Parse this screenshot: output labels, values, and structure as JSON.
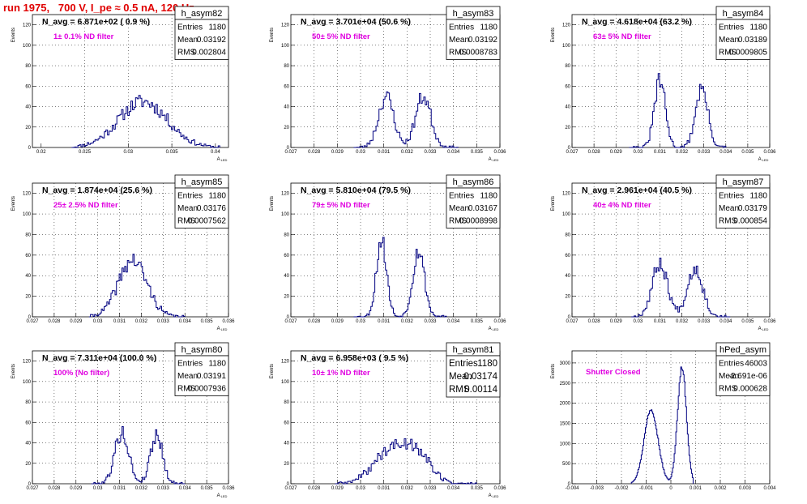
{
  "run_title": "run 1975,   700 V, I_pe ≈ 0.5 nA, 120 Hz",
  "chart_data": [
    {
      "type": "histogram",
      "name": "h_asym82",
      "navg_text": "N_avg = 6.871e+02 ( 0.9 %)",
      "annotation": "1± 0.1% ND filter",
      "stats": {
        "entries": "1180",
        "mean": "0.03192",
        "rms": "0.002804"
      },
      "ylabel": "Events",
      "xlabel": "A_LED",
      "xlim": [
        0.019,
        0.0415
      ],
      "ylim": [
        0,
        130
      ],
      "xticks": [
        0.02,
        0.025,
        0.03,
        0.035,
        0.04
      ],
      "xtick_labels": [
        "0.02",
        "0.025",
        "0.03",
        "0.035",
        "0.04"
      ],
      "yticks": [
        0,
        20,
        40,
        60,
        80,
        100,
        120
      ],
      "peaks": [
        {
          "center": 0.0317,
          "sigma": 0.0028,
          "amp": 45
        }
      ],
      "range": [
        0.0235,
        0.0405
      ],
      "bins": 95,
      "seed": 11
    },
    {
      "type": "histogram",
      "name": "h_asym83",
      "navg_text": "N_avg = 3.701e+04 (50.6 %)",
      "annotation": "50± 5% ND filter",
      "stats": {
        "entries": "1180",
        "mean": "0.03192",
        "rms": "0.0008783"
      },
      "ylabel": "Events",
      "xlabel": "A_LED",
      "xlim": [
        0.027,
        0.036
      ],
      "ylim": [
        0,
        130
      ],
      "xticks": [
        0.027,
        0.028,
        0.029,
        0.03,
        0.031,
        0.032,
        0.033,
        0.034,
        0.035,
        0.036
      ],
      "xtick_labels": [
        "0.027",
        "0.028",
        "0.029",
        "0.03",
        "0.031",
        "0.032",
        "0.033",
        "0.034",
        "0.035",
        "0.036"
      ],
      "yticks": [
        0,
        20,
        40,
        60,
        80,
        100,
        120
      ],
      "peaks": [
        {
          "center": 0.0311,
          "sigma": 0.00033,
          "amp": 50
        },
        {
          "center": 0.0327,
          "sigma": 0.00033,
          "amp": 50
        }
      ],
      "range": [
        0.0297,
        0.0342
      ],
      "bins": 70,
      "seed": 23
    },
    {
      "type": "histogram",
      "name": "h_asym84",
      "navg_text": "N_avg = 4.618e+04 (63.2 %)",
      "annotation": "63± 5% ND filter",
      "stats": {
        "entries": "1180",
        "mean": "0.03189",
        "rms": "0.0009805"
      },
      "ylabel": "Events",
      "xlabel": "A_LED",
      "xlim": [
        0.027,
        0.036
      ],
      "ylim": [
        0,
        130
      ],
      "xticks": [
        0.027,
        0.028,
        0.029,
        0.03,
        0.031,
        0.032,
        0.033,
        0.034,
        0.035,
        0.036
      ],
      "xtick_labels": [
        "0.027",
        "0.028",
        "0.029",
        "0.03",
        "0.031",
        "0.032",
        "0.033",
        "0.034",
        "0.035",
        "0.036"
      ],
      "yticks": [
        0,
        20,
        40,
        60,
        80,
        100,
        120
      ],
      "peaks": [
        {
          "center": 0.031,
          "sigma": 0.00025,
          "amp": 65
        },
        {
          "center": 0.0329,
          "sigma": 0.00028,
          "amp": 58
        }
      ],
      "range": [
        0.0296,
        0.034
      ],
      "bins": 70,
      "seed": 31
    },
    {
      "type": "histogram",
      "name": "h_asym85",
      "navg_text": "N_avg = 1.874e+04 (25.6 %)",
      "annotation": "25± 2.5% ND filter",
      "stats": {
        "entries": "1180",
        "mean": "0.03176",
        "rms": "0.0007562"
      },
      "ylabel": "Events",
      "xlabel": "A_LED",
      "xlim": [
        0.027,
        0.036
      ],
      "ylim": [
        0,
        130
      ],
      "xticks": [
        0.027,
        0.028,
        0.029,
        0.03,
        0.031,
        0.032,
        0.033,
        0.034,
        0.035,
        0.036
      ],
      "xtick_labels": [
        "0.027",
        "0.028",
        "0.029",
        "0.03",
        "0.031",
        "0.032",
        "0.033",
        "0.034",
        "0.035",
        "0.036"
      ],
      "yticks": [
        0,
        20,
        40,
        60,
        80,
        100,
        120
      ],
      "peaks": [
        {
          "center": 0.0316,
          "sigma": 0.00065,
          "amp": 55
        }
      ],
      "range": [
        0.0296,
        0.034
      ],
      "bins": 70,
      "seed": 41
    },
    {
      "type": "histogram",
      "name": "h_asym86",
      "navg_text": "N_avg = 5.810e+04 (79.5 %)",
      "annotation": "79± 5% ND filter",
      "stats": {
        "entries": "1180",
        "mean": "0.03167",
        "rms": "0.0008998"
      },
      "ylabel": "Events",
      "xlabel": "A_LED",
      "xlim": [
        0.027,
        0.036
      ],
      "ylim": [
        0,
        130
      ],
      "xticks": [
        0.027,
        0.028,
        0.029,
        0.03,
        0.031,
        0.032,
        0.033,
        0.034,
        0.035,
        0.036
      ],
      "xtick_labels": [
        "0.027",
        "0.028",
        "0.029",
        "0.03",
        "0.031",
        "0.032",
        "0.033",
        "0.034",
        "0.035",
        "0.036"
      ],
      "yticks": [
        0,
        20,
        40,
        60,
        80,
        100,
        120
      ],
      "peaks": [
        {
          "center": 0.0309,
          "sigma": 0.00022,
          "amp": 75
        },
        {
          "center": 0.0325,
          "sigma": 0.00025,
          "amp": 65
        }
      ],
      "range": [
        0.0297,
        0.0337
      ],
      "bins": 70,
      "seed": 53
    },
    {
      "type": "histogram",
      "name": "h_asym87",
      "navg_text": "N_avg = 2.961e+04 (40.5 %)",
      "annotation": "40± 4% ND filter",
      "stats": {
        "entries": "1180",
        "mean": "0.03179",
        "rms": "0.000854"
      },
      "ylabel": "Events",
      "xlabel": "A_LED",
      "xlim": [
        0.027,
        0.036
      ],
      "ylim": [
        0,
        130
      ],
      "xticks": [
        0.027,
        0.028,
        0.029,
        0.03,
        0.031,
        0.032,
        0.033,
        0.034,
        0.035,
        0.036
      ],
      "xtick_labels": [
        "0.027",
        "0.028",
        "0.029",
        "0.03",
        "0.031",
        "0.032",
        "0.033",
        "0.034",
        "0.035",
        "0.036"
      ],
      "yticks": [
        0,
        20,
        40,
        60,
        80,
        100,
        120
      ],
      "peaks": [
        {
          "center": 0.031,
          "sigma": 0.00035,
          "amp": 52
        },
        {
          "center": 0.0326,
          "sigma": 0.00035,
          "amp": 48
        }
      ],
      "range": [
        0.0297,
        0.0342
      ],
      "bins": 70,
      "seed": 67
    },
    {
      "type": "histogram",
      "name": "h_asym80",
      "navg_text": "N_avg = 7.311e+04 (100.0 %)",
      "annotation": "100% (No filter)",
      "stats": {
        "entries": "1180",
        "mean": "0.03191",
        "rms": "0.0007936"
      },
      "ylabel": "Events",
      "xlabel": "A_LED",
      "xlim": [
        0.027,
        0.036
      ],
      "ylim": [
        0,
        130
      ],
      "xticks": [
        0.027,
        0.028,
        0.029,
        0.03,
        0.031,
        0.032,
        0.033,
        0.034,
        0.035,
        0.036
      ],
      "xtick_labels": [
        "0.027",
        "0.028",
        "0.029",
        "0.03",
        "0.031",
        "0.032",
        "0.033",
        "0.034",
        "0.035",
        "0.036"
      ],
      "yticks": [
        0,
        20,
        40,
        60,
        80,
        100,
        120
      ],
      "peaks": [
        {
          "center": 0.0311,
          "sigma": 0.00032,
          "amp": 50
        },
        {
          "center": 0.0327,
          "sigma": 0.00028,
          "amp": 48
        }
      ],
      "range": [
        0.0297,
        0.034
      ],
      "bins": 70,
      "seed": 79
    },
    {
      "type": "histogram",
      "name": "h_asym81",
      "navg_text": "N_avg = 6.958e+03 ( 9.5 %)",
      "annotation": "10± 1% ND filter",
      "stats": {
        "entries": "1180",
        "mean": "0.03174",
        "rms": "0.00114"
      },
      "stats_large": true,
      "ylabel": "Events",
      "xlabel": "A_LED",
      "xlim": [
        0.027,
        0.036
      ],
      "ylim": [
        0,
        130
      ],
      "xticks": [
        0.027,
        0.028,
        0.029,
        0.03,
        0.031,
        0.032,
        0.033,
        0.034,
        0.035,
        0.036
      ],
      "xtick_labels": [
        "0.027",
        "0.028",
        "0.029",
        "0.03",
        "0.031",
        "0.032",
        "0.033",
        "0.034",
        "0.035",
        "0.036"
      ],
      "yticks": [
        0,
        20,
        40,
        60,
        80,
        100,
        120
      ],
      "peaks": [
        {
          "center": 0.0312,
          "sigma": 0.0007,
          "amp": 30
        },
        {
          "center": 0.0324,
          "sigma": 0.0006,
          "amp": 30
        }
      ],
      "range": [
        0.0289,
        0.035
      ],
      "bins": 90,
      "seed": 89
    },
    {
      "type": "histogram",
      "name": "hPed_asym",
      "navg_text": "",
      "annotation": "Shutter Closed",
      "stats": {
        "entries": "46003",
        "mean": "-2.691e-06",
        "rms": "0.000628"
      },
      "ylabel": "Events",
      "xlabel": "",
      "xlim": [
        -0.004,
        0.004
      ],
      "ylim": [
        0,
        3300
      ],
      "xticks": [
        -0.004,
        -0.003,
        -0.002,
        -0.001,
        0,
        0.001,
        0.002,
        0.003,
        0.004
      ],
      "xtick_labels": [
        "-0.004",
        "-0.003",
        "-0.002",
        "-0.001",
        "0",
        "0.001",
        "0.002",
        "0.003",
        "0.004"
      ],
      "yticks": [
        0,
        500,
        1000,
        1500,
        2000,
        2500,
        3000
      ],
      "peaks": [
        {
          "center": -0.0008,
          "sigma": 0.00028,
          "amp": 1850
        },
        {
          "center": 0.00045,
          "sigma": 0.00018,
          "amp": 2900
        }
      ],
      "range": [
        -0.0016,
        0.0009
      ],
      "bins": 75,
      "seed": 97
    }
  ]
}
